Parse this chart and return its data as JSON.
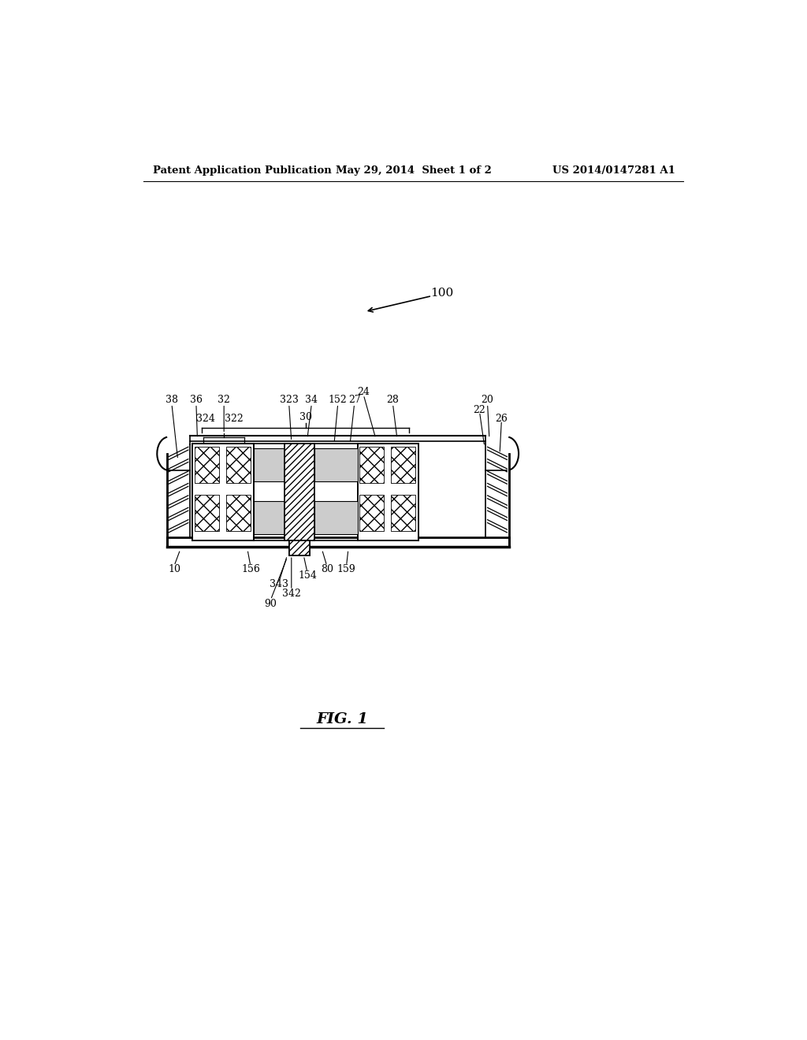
{
  "bg_color": "#ffffff",
  "header_left": "Patent Application Publication",
  "header_mid": "May 29, 2014  Sheet 1 of 2",
  "header_right": "US 2014/0147281 A1",
  "fig_label": "FIG. 1",
  "header_font_size": 9.5,
  "label_font_size": 9.0,
  "fig_font_size": 14
}
